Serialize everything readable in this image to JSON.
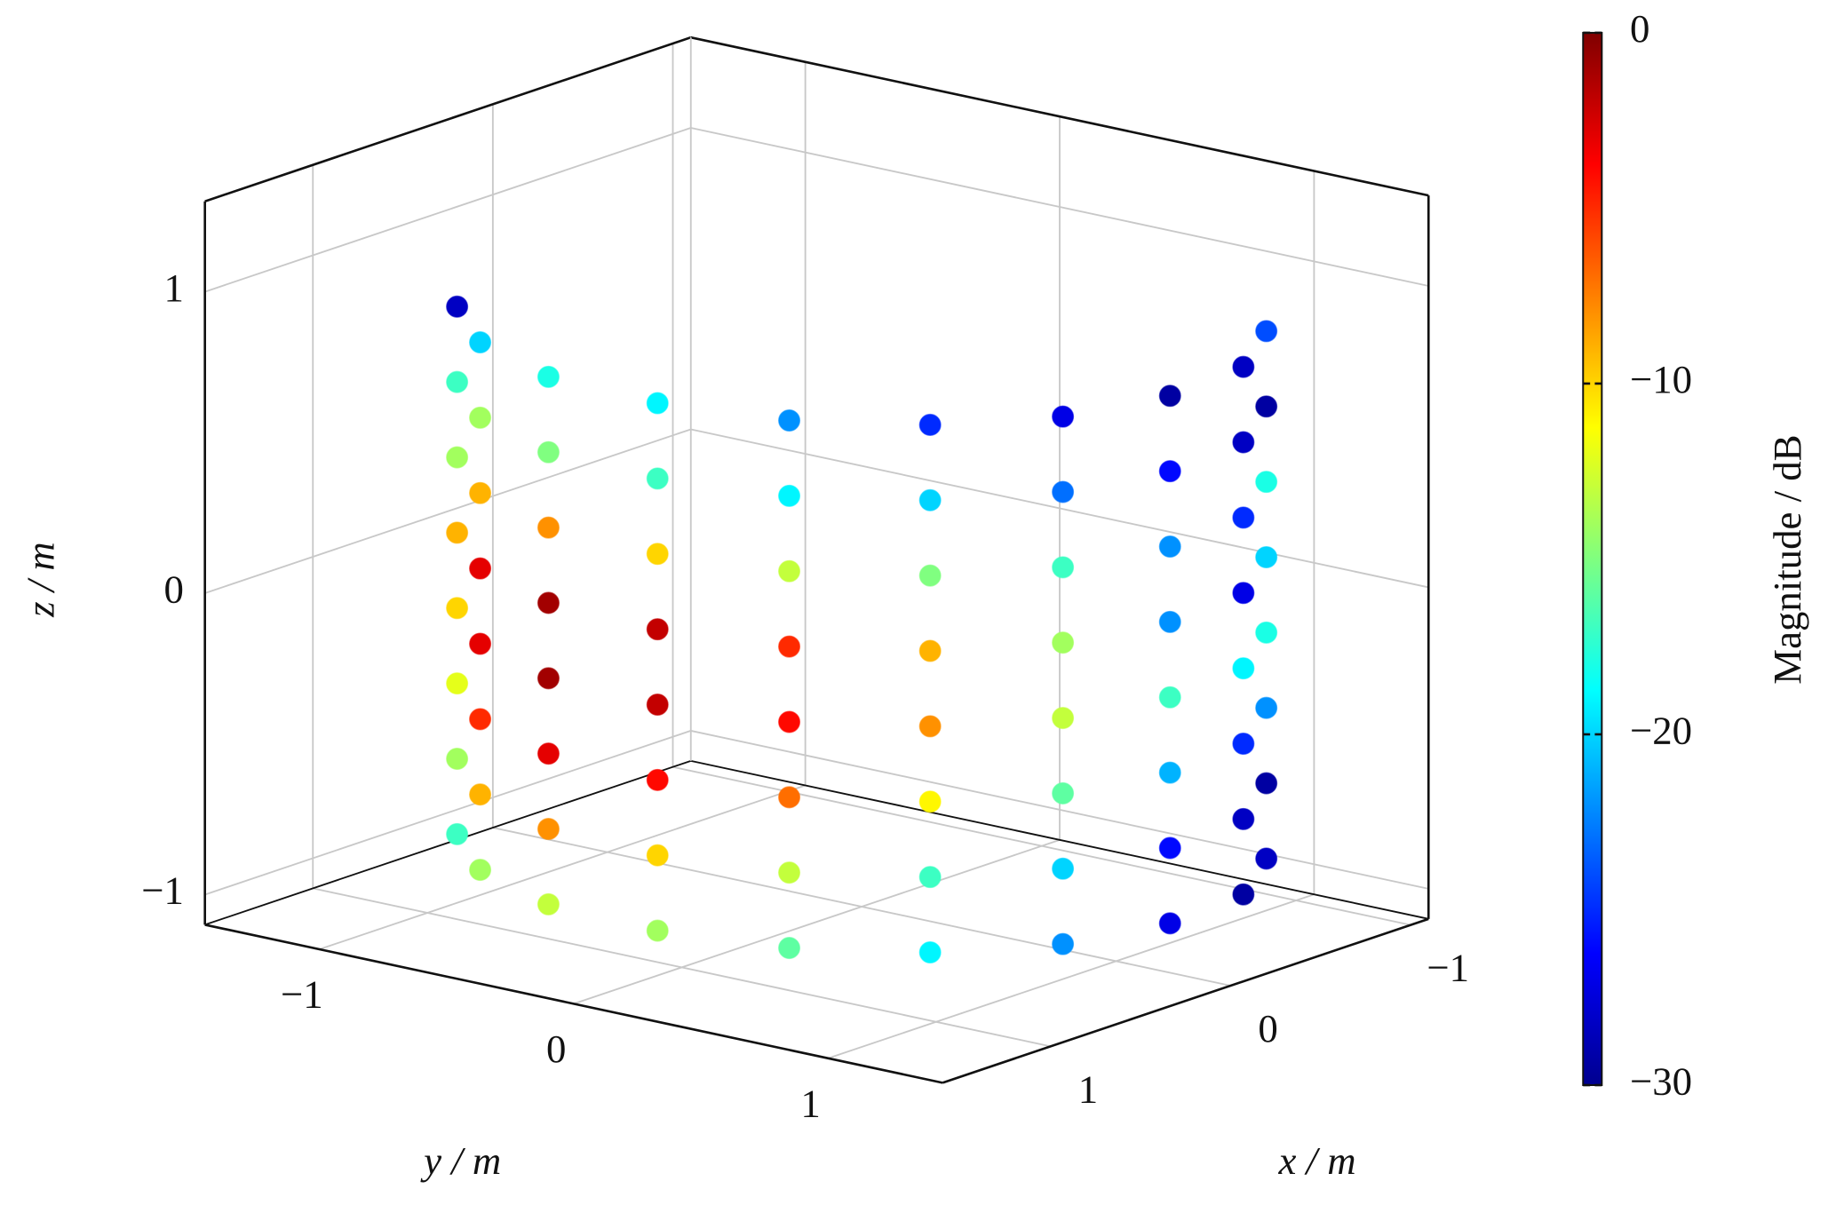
{
  "chart_data": {
    "type": "scatter3d",
    "xlabel": "x / m",
    "ylabel": "y / m",
    "zlabel": "z / m",
    "xlim": [
      -1.1,
      1.6
    ],
    "ylim": [
      -1.45,
      1.45
    ],
    "zlim": [
      -1.1,
      1.3
    ],
    "xticks": [
      {
        "value": -1,
        "label": "−1"
      },
      0,
      1
    ],
    "yticks": [
      {
        "value": -1,
        "label": "−1"
      },
      0,
      1
    ],
    "zticks": [
      {
        "value": -1,
        "label": "−1"
      },
      0,
      1
    ],
    "grid": true,
    "colorbar": {
      "label": "Magnitude / dB",
      "clim": [
        -30,
        0
      ],
      "colormap": "jet",
      "ticks": [
        0,
        {
          "value": -10,
          "label": "−10"
        },
        {
          "value": -20,
          "label": "−20"
        },
        {
          "value": -30,
          "label": "−30"
        }
      ]
    },
    "x": [
      0.75,
      1.06,
      1.26,
      1.29,
      1.18,
      0.92,
      0.55,
      0.11,
      -0.34,
      -0.75,
      0.75,
      1.06,
      1.26,
      1.29,
      1.18,
      0.92,
      0.55,
      0.11,
      -0.34,
      -0.75,
      0.75,
      1.06,
      1.26,
      1.29,
      1.18,
      0.92,
      0.55,
      0.11,
      -0.34,
      -0.75,
      0.75,
      1.06,
      1.26,
      1.29,
      1.18,
      0.92,
      0.55,
      0.11,
      -0.34,
      -0.75,
      0.75,
      1.06,
      1.26,
      1.29,
      1.18,
      0.92,
      0.55,
      0.11,
      -0.34,
      -0.75,
      0.75,
      1.06,
      1.26,
      1.29,
      1.18,
      0.92,
      0.55,
      0.11,
      -0.34,
      -0.75,
      0.75,
      1.06,
      1.26,
      1.29,
      1.18,
      0.92,
      0.55,
      0.11,
      -0.34,
      -0.75,
      0.75,
      1.06,
      1.26,
      1.29,
      1.18,
      0.92,
      0.55,
      0.11,
      -0.34,
      -0.75
    ],
    "y": [
      -1.06,
      -0.75,
      -0.34,
      0.11,
      0.55,
      0.92,
      1.18,
      1.29,
      1.26,
      1.06,
      -1.06,
      -0.75,
      -0.34,
      0.11,
      0.55,
      0.92,
      1.18,
      1.29,
      1.26,
      1.06,
      -1.06,
      -0.75,
      -0.34,
      0.11,
      0.55,
      0.92,
      1.18,
      1.29,
      1.26,
      1.06,
      -1.06,
      -0.75,
      -0.34,
      0.11,
      0.55,
      0.92,
      1.18,
      1.29,
      1.26,
      1.06,
      -1.06,
      -0.75,
      -0.34,
      0.11,
      0.55,
      0.92,
      1.18,
      1.29,
      1.26,
      1.06,
      -1.06,
      -0.75,
      -0.34,
      0.11,
      0.55,
      0.92,
      1.18,
      1.29,
      1.26,
      1.06,
      -1.06,
      -0.75,
      -0.34,
      0.11,
      0.55,
      0.92,
      1.18,
      1.29,
      1.26,
      1.06,
      -1.06,
      -0.75,
      -0.34,
      0.11,
      0.55,
      0.92,
      1.18,
      1.29,
      1.26,
      1.06
    ],
    "z": [
      0.85,
      0.85,
      0.85,
      0.85,
      0.85,
      0.85,
      0.85,
      0.85,
      0.85,
      0.85,
      0.6,
      0.6,
      0.6,
      0.6,
      0.6,
      0.6,
      0.6,
      0.6,
      0.6,
      0.6,
      0.35,
      0.35,
      0.35,
      0.35,
      0.35,
      0.35,
      0.35,
      0.35,
      0.35,
      0.35,
      0.1,
      0.1,
      0.1,
      0.1,
      0.1,
      0.1,
      0.1,
      0.1,
      0.1,
      0.1,
      -0.15,
      -0.15,
      -0.15,
      -0.15,
      -0.15,
      -0.15,
      -0.15,
      -0.15,
      -0.15,
      -0.15,
      -0.4,
      -0.4,
      -0.4,
      -0.4,
      -0.4,
      -0.4,
      -0.4,
      -0.4,
      -0.4,
      -0.4,
      -0.65,
      -0.65,
      -0.65,
      -0.65,
      -0.65,
      -0.65,
      -0.65,
      -0.65,
      -0.65,
      -0.65,
      -0.9,
      -0.9,
      -0.9,
      -0.9,
      -0.9,
      -0.9,
      -0.9,
      -0.9,
      -0.9,
      -0.9
    ],
    "values": [
      -28,
      -20,
      -18,
      -19,
      -22,
      -25,
      -27,
      -29,
      -28,
      -24,
      -17,
      -14,
      -15,
      -17,
      -19,
      -20,
      -23,
      -26,
      -28,
      -29,
      -14,
      -9,
      -8,
      -10,
      -13,
      -15,
      -17,
      -22,
      -25,
      -18,
      -9,
      -3,
      -1,
      -2,
      -5,
      -9,
      -14,
      -22,
      -27,
      -20,
      -10,
      -3,
      -1,
      -2,
      -4,
      -8,
      -13,
      -17,
      -19,
      -18,
      -12,
      -5,
      -3,
      -4,
      -7,
      -11,
      -16,
      -21,
      -25,
      -22,
      -14,
      -9,
      -8,
      -10,
      -13,
      -17,
      -20,
      -26,
      -28,
      -29,
      -17,
      -14,
      -13,
      -14,
      -16,
      -19,
      -22,
      -27,
      -29,
      -28
    ]
  }
}
